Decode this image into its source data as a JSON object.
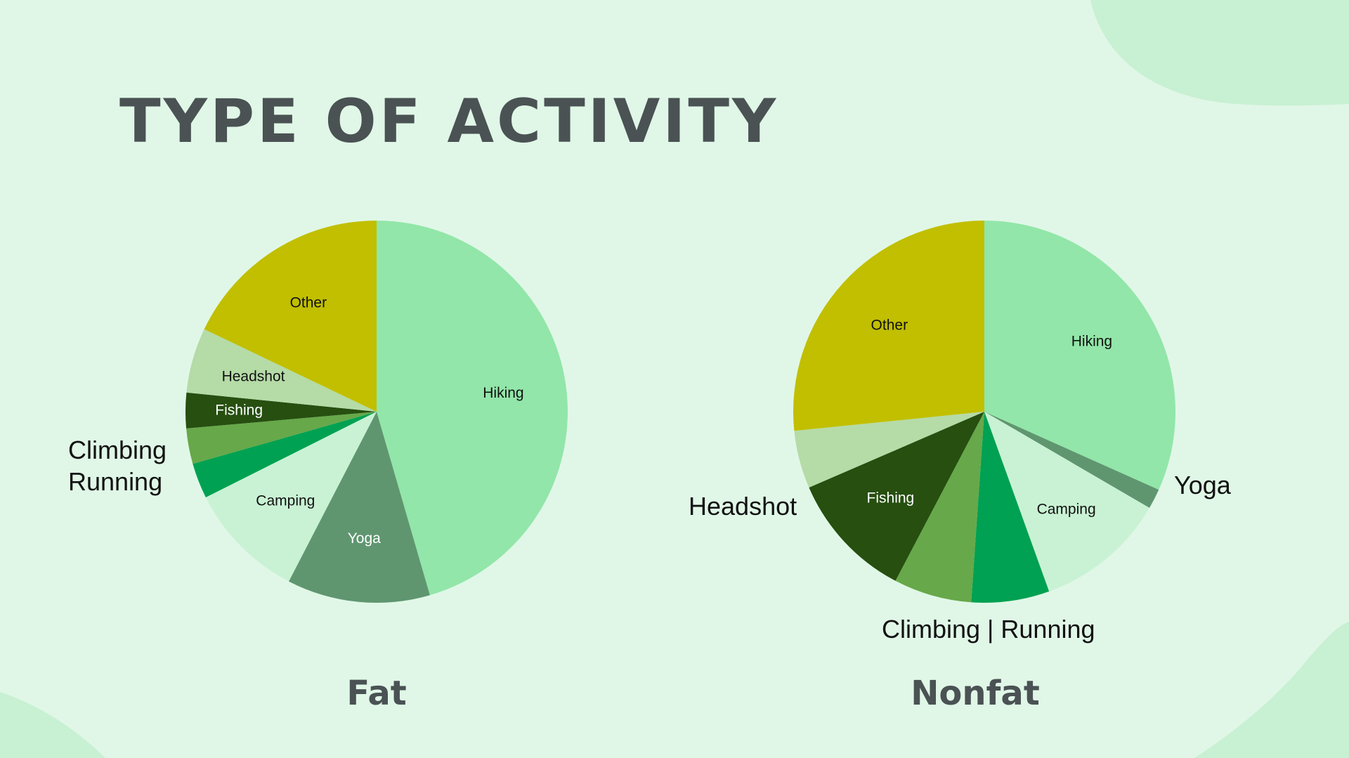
{
  "slide": {
    "title": "TYPE OF ACTIVITY"
  },
  "colors": {
    "background": "#e0f7e7",
    "blob": "#c8f0d3",
    "title": "#4a5254"
  },
  "chart_data": [
    {
      "type": "pie",
      "caption": "Fat",
      "start_angle_deg": 0,
      "direction": "clockwise",
      "slices": [
        {
          "label": "Hiking",
          "value": 45.5,
          "color": "#92e6a9",
          "text_color": "#111111",
          "show_label": true
        },
        {
          "label": "Yoga",
          "value": 12.1,
          "color": "#5f9670",
          "text_color": "#ffffff",
          "show_label": true
        },
        {
          "label": "Camping",
          "value": 10.0,
          "color": "#c9f2d4",
          "text_color": "#111111",
          "show_label": true
        },
        {
          "label": "Running",
          "value": 3.0,
          "color": "#00a152",
          "text_color": "#ffffff",
          "show_label": false
        },
        {
          "label": "Climbing",
          "value": 3.0,
          "color": "#67a84a",
          "text_color": "#ffffff",
          "show_label": false
        },
        {
          "label": "Fishing",
          "value": 3.0,
          "color": "#264f10",
          "text_color": "#ffffff",
          "show_label": true
        },
        {
          "label": "Headshot",
          "value": 5.5,
          "color": "#b5dba7",
          "text_color": "#111111",
          "show_label": true
        },
        {
          "label": "Other",
          "value": 17.9,
          "color": "#c1bf00",
          "text_color": "#111111",
          "show_label": true
        }
      ],
      "external_labels": [
        "Climbing",
        "Running"
      ]
    },
    {
      "type": "pie",
      "caption": "Nonfat",
      "start_angle_deg": 0,
      "direction": "clockwise",
      "slices": [
        {
          "label": "Hiking",
          "value": 31.7,
          "color": "#92e6a9",
          "text_color": "#111111",
          "show_label": true
        },
        {
          "label": "Yoga",
          "value": 1.7,
          "color": "#5f9670",
          "text_color": "#ffffff",
          "show_label": false
        },
        {
          "label": "Camping",
          "value": 11.1,
          "color": "#c9f2d4",
          "text_color": "#111111",
          "show_label": true
        },
        {
          "label": "Running",
          "value": 6.6,
          "color": "#00a152",
          "text_color": "#ffffff",
          "show_label": false
        },
        {
          "label": "Climbing",
          "value": 6.6,
          "color": "#67a84a",
          "text_color": "#ffffff",
          "show_label": false
        },
        {
          "label": "Fishing",
          "value": 10.8,
          "color": "#264f10",
          "text_color": "#ffffff",
          "show_label": true
        },
        {
          "label": "Headshot",
          "value": 4.9,
          "color": "#b5dba7",
          "text_color": "#111111",
          "show_label": false
        },
        {
          "label": "Other",
          "value": 26.6,
          "color": "#c1bf00",
          "text_color": "#111111",
          "show_label": true
        }
      ],
      "external_labels": [
        "Yoga",
        "Headshot",
        "Climbing | Running"
      ]
    }
  ]
}
